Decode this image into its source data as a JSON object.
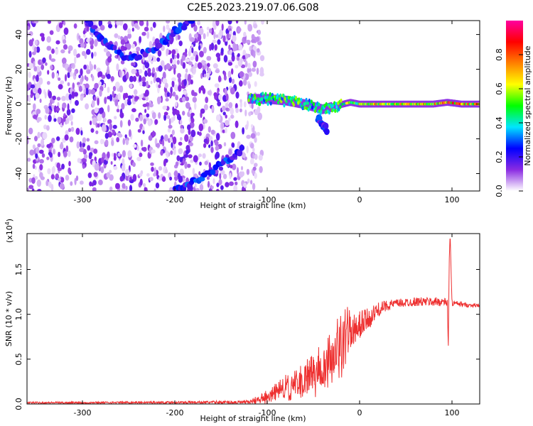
{
  "title": "C2E5.2023.219.07.06.G08",
  "chart_data": [
    {
      "type": "heatmap",
      "xlabel": "Height of straight line (km)",
      "ylabel": "Frequency (Hz)",
      "xlim": [
        -360,
        130
      ],
      "ylim": [
        -50,
        48
      ],
      "xticks": [
        -300,
        -200,
        -100,
        0,
        100
      ],
      "yticks": [
        -40,
        -20,
        0,
        20,
        40
      ],
      "colorbar": {
        "label": "Normalized spectral amplitude",
        "range": [
          0,
          1
        ],
        "ticks": [
          "0.0",
          "0.2",
          "0.4",
          "0.6",
          "0.8"
        ],
        "colormap": [
          "#ffffff",
          "#8a2be2",
          "#0000ff",
          "#00e5ff",
          "#00ff00",
          "#ffff00",
          "#ff8000",
          "#ff0000",
          "#ff00a0"
        ]
      },
      "noise_region": {
        "x": [
          -360,
          -115
        ],
        "freq": [
          -50,
          48
        ]
      },
      "signal_track": [
        {
          "x": -120,
          "freq": 3,
          "amp": 0.5
        },
        {
          "x": -100,
          "freq": 3,
          "amp": 0.45
        },
        {
          "x": -80,
          "freq": 2,
          "amp": 0.55
        },
        {
          "x": -60,
          "freq": 0,
          "amp": 0.5
        },
        {
          "x": -40,
          "freq": -3,
          "amp": 0.45
        },
        {
          "x": -25,
          "freq": -1,
          "amp": 0.5
        },
        {
          "x": -10,
          "freq": 1,
          "amp": 0.6
        },
        {
          "x": 0,
          "freq": 0,
          "amp": 0.65
        },
        {
          "x": 20,
          "freq": 0,
          "amp": 0.7
        },
        {
          "x": 50,
          "freq": 0,
          "amp": 0.72
        },
        {
          "x": 80,
          "freq": 0,
          "amp": 0.72
        },
        {
          "x": 95,
          "freq": 1,
          "amp": 0.85
        },
        {
          "x": 110,
          "freq": 0,
          "amp": 0.8
        },
        {
          "x": 130,
          "freq": 0,
          "amp": 0.75
        }
      ],
      "branches": [
        {
          "name": "upper",
          "points": [
            [
              -295,
              48
            ],
            [
              -275,
              35
            ],
            [
              -250,
              26
            ],
            [
              -220,
              32
            ],
            [
              -200,
              42
            ],
            [
              -180,
              48
            ]
          ]
        },
        {
          "name": "lower",
          "points": [
            [
              -200,
              -50
            ],
            [
              -180,
              -45
            ],
            [
              -150,
              -35
            ],
            [
              -125,
              -25
            ]
          ]
        },
        {
          "name": "dip",
          "points": [
            [
              -45,
              -8
            ],
            [
              -40,
              -12
            ],
            [
              -35,
              -15
            ]
          ]
        }
      ]
    },
    {
      "type": "line",
      "xlabel": "Height of straight line (km)",
      "ylabel": "SNR (10 * v/v)",
      "exponent_label": "(x10",
      "exponent_power": "4",
      "exponent_close": ")",
      "xlim": [
        -360,
        130
      ],
      "ylim": [
        0,
        1.9
      ],
      "xticks": [
        -300,
        -200,
        -100,
        0,
        100
      ],
      "yticks": [
        "0.0",
        "0.5",
        "1.0",
        "1.5"
      ],
      "line_color": "#ee3030",
      "series": [
        {
          "x": [
            -360,
            -300,
            -200,
            -120,
            -110,
            -100,
            -90,
            -80,
            -70,
            -60,
            -50,
            -40,
            -30,
            -20,
            -15,
            -10,
            -5,
            0,
            10,
            20,
            30,
            40,
            50,
            60,
            70,
            80,
            90,
            95,
            96,
            97,
            98,
            99,
            100,
            105,
            110,
            120,
            130
          ],
          "values": [
            0.015,
            0.015,
            0.018,
            0.02,
            0.05,
            0.08,
            0.12,
            0.18,
            0.22,
            0.25,
            0.35,
            0.42,
            0.55,
            0.65,
            0.75,
            0.78,
            0.82,
            0.86,
            0.95,
            1.05,
            1.1,
            1.12,
            1.13,
            1.14,
            1.14,
            1.14,
            1.14,
            1.13,
            0.6,
            1.6,
            1.9,
            1.5,
            1.12,
            1.12,
            1.11,
            1.1,
            1.1
          ],
          "noise": [
            0.01,
            0.01,
            0.012,
            0.02,
            0.05,
            0.08,
            0.12,
            0.16,
            0.18,
            0.22,
            0.28,
            0.32,
            0.35,
            0.4,
            0.35,
            0.3,
            0.25,
            0.18,
            0.12,
            0.08,
            0.06,
            0.05,
            0.05,
            0.05,
            0.05,
            0.05,
            0.05,
            0.04,
            0,
            0,
            0,
            0,
            0.04,
            0.03,
            0.03,
            0.02,
            0.02
          ]
        }
      ]
    }
  ]
}
